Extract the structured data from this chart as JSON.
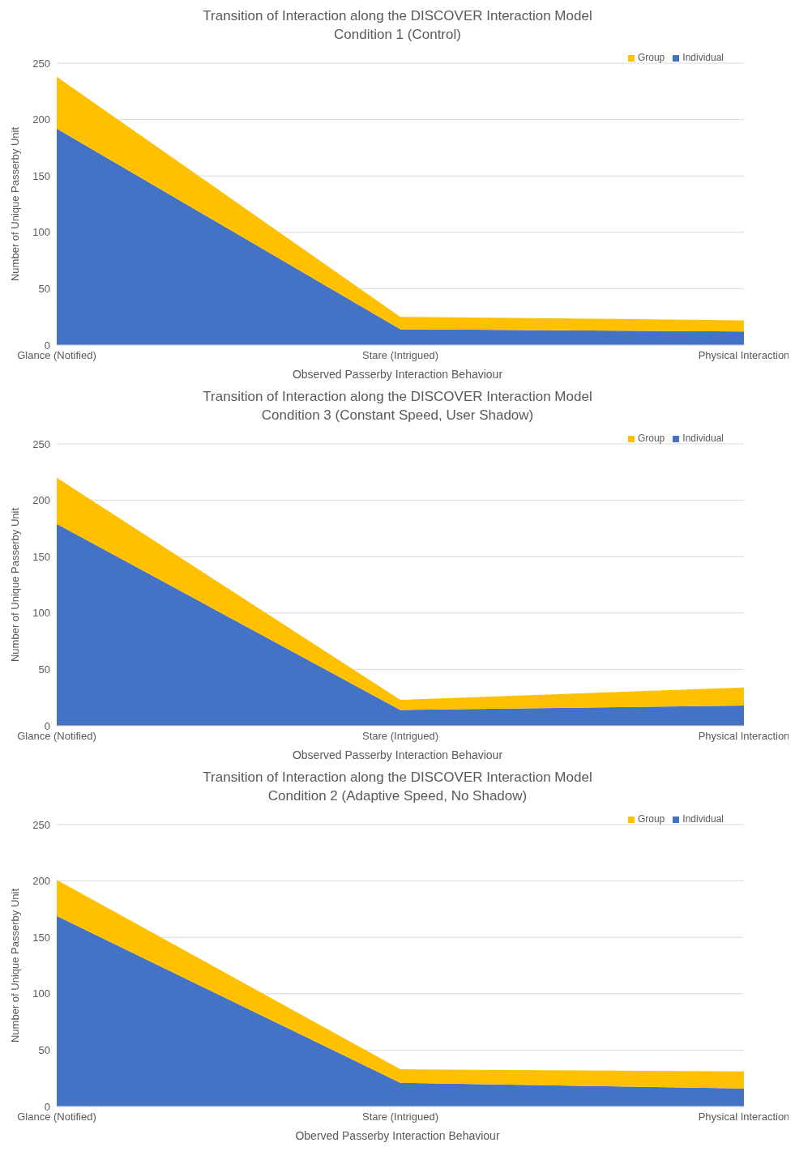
{
  "chart_data": [
    {
      "type": "area",
      "stacked": true,
      "title": "Transition of Interaction along the DISCOVER Interaction Model",
      "subtitle": "Condition 1 (Control)",
      "xlabel": "Observed Passerby Interaction Behaviour",
      "ylabel": "Number of Unique Passerby Unit",
      "categories": [
        "Glance (Notified)",
        "Stare (Intrigued)",
        "Physical Interaction"
      ],
      "series": [
        {
          "name": "Individual",
          "color": "#4472c4",
          "values": [
            192,
            14,
            12
          ]
        },
        {
          "name": "Group",
          "color": "#ffc000",
          "values": [
            46,
            11,
            10
          ]
        }
      ],
      "ylim": [
        0,
        250
      ],
      "yticks": [
        0,
        50,
        100,
        150,
        200,
        250
      ],
      "grid": "y",
      "legend": "top right"
    },
    {
      "type": "area",
      "stacked": true,
      "title": "Transition of Interaction along the DISCOVER Interaction Model",
      "subtitle": "Condition 3 (Constant Speed, User Shadow)",
      "xlabel": "Observed Passerby Interaction Behaviour",
      "ylabel": "Number of Unique Passerby Unit",
      "categories": [
        "Glance (Notified)",
        "Stare (Intrigued)",
        "Physical Interaction"
      ],
      "series": [
        {
          "name": "Individual",
          "color": "#4472c4",
          "values": [
            179,
            14,
            18
          ]
        },
        {
          "name": "Group",
          "color": "#ffc000",
          "values": [
            41,
            9,
            16
          ]
        }
      ],
      "ylim": [
        0,
        250
      ],
      "yticks": [
        0,
        50,
        100,
        150,
        200,
        250
      ],
      "grid": "y",
      "legend": "top right"
    },
    {
      "type": "area",
      "stacked": true,
      "title": "Transition of Interaction along the DISCOVER Interaction Model",
      "subtitle": "Condition 2 (Adaptive Speed, No Shadow)",
      "xlabel": "Oberved Passerby Interaction Behaviour",
      "ylabel": "Number of Unique Passerby Unit",
      "categories": [
        "Glance (Notified)",
        "Stare (Intrigued)",
        "Physical Interaction"
      ],
      "series": [
        {
          "name": "Individual",
          "color": "#4472c4",
          "values": [
            169,
            21,
            16
          ]
        },
        {
          "name": "Group",
          "color": "#ffc000",
          "values": [
            32,
            12,
            15
          ]
        }
      ],
      "ylim": [
        0,
        250
      ],
      "yticks": [
        0,
        50,
        100,
        150,
        200,
        250
      ],
      "grid": "y",
      "legend": "top right"
    }
  ]
}
